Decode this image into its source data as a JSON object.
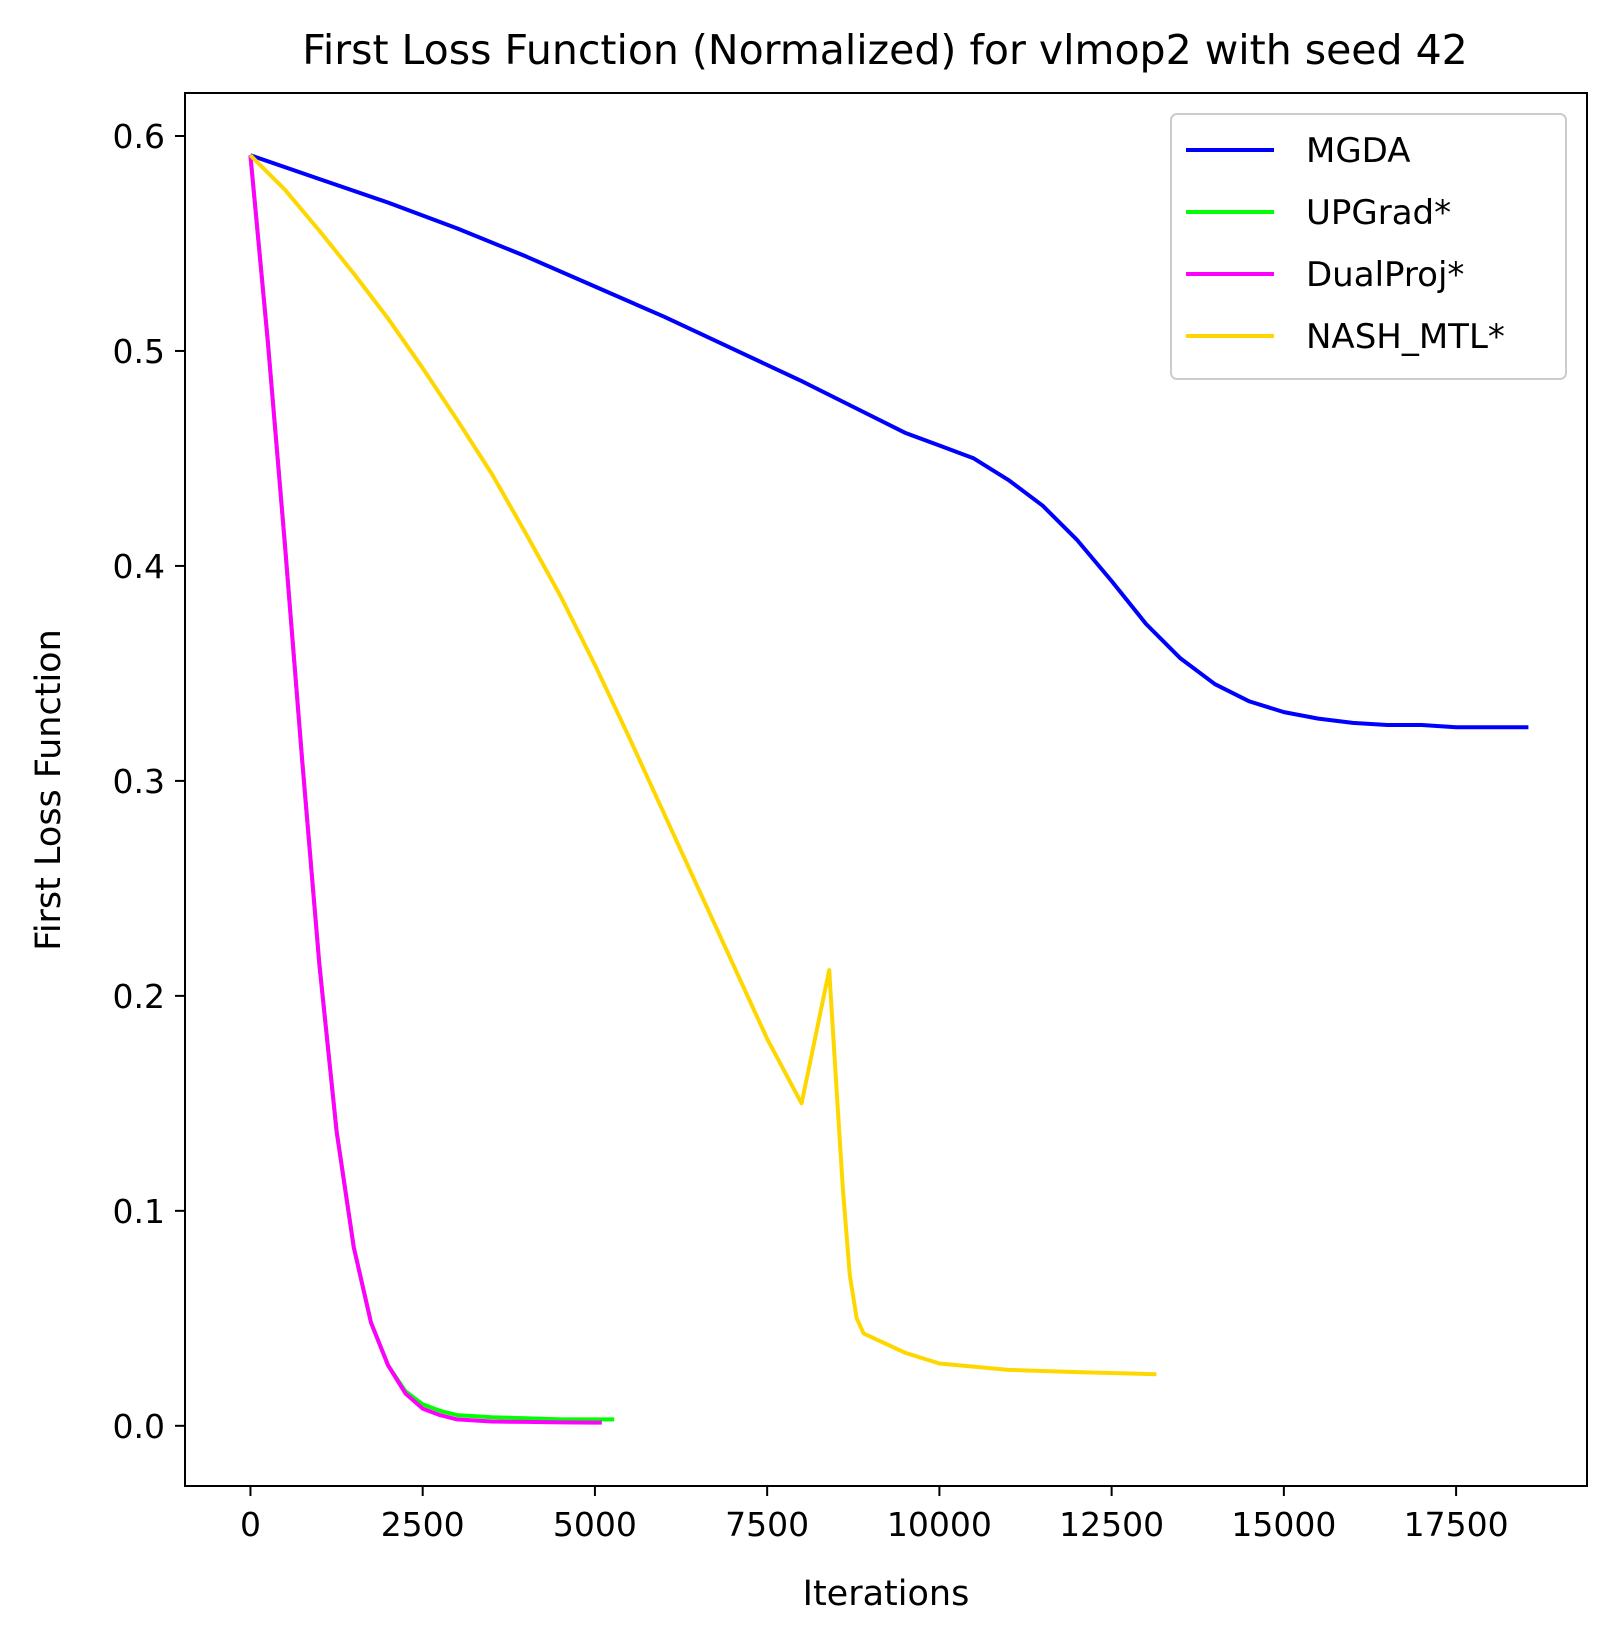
{
  "chart_data": {
    "type": "line",
    "title": "First Loss Function (Normalized) for vlmop2 with seed 42",
    "xlabel": "Iterations",
    "ylabel": "First Loss Function",
    "xlim": [
      -950,
      19400
    ],
    "ylim": [
      -0.028,
      0.62
    ],
    "x_ticks": [
      0,
      2500,
      5000,
      7500,
      10000,
      12500,
      15000,
      17500
    ],
    "x_tick_labels": [
      "0",
      "2500",
      "5000",
      "7500",
      "10000",
      "12500",
      "15000",
      "17500"
    ],
    "y_ticks": [
      0.0,
      0.1,
      0.2,
      0.3,
      0.4,
      0.5,
      0.6
    ],
    "y_tick_labels": [
      "0.0",
      "0.1",
      "0.2",
      "0.3",
      "0.4",
      "0.5",
      "0.6"
    ],
    "grid": false,
    "legend_position": "top-right",
    "series": [
      {
        "name": "MGDA",
        "color": "#0000ff",
        "x": [
          0,
          1000,
          2000,
          3000,
          4000,
          5000,
          6000,
          7000,
          8000,
          9000,
          9500,
          10000,
          10500,
          11000,
          11500,
          12000,
          12500,
          13000,
          13500,
          14000,
          14500,
          15000,
          15500,
          16000,
          16500,
          17000,
          17500,
          18000,
          18550
        ],
        "y": [
          0.591,
          0.58,
          0.569,
          0.557,
          0.544,
          0.53,
          0.516,
          0.501,
          0.486,
          0.47,
          0.462,
          0.456,
          0.45,
          0.44,
          0.428,
          0.412,
          0.393,
          0.373,
          0.357,
          0.345,
          0.337,
          0.332,
          0.329,
          0.327,
          0.326,
          0.326,
          0.325,
          0.325,
          0.325
        ]
      },
      {
        "name": "UPGrad*",
        "color": "#00ff00",
        "x": [
          0,
          250,
          500,
          750,
          1000,
          1250,
          1500,
          1750,
          2000,
          2250,
          2500,
          2750,
          3000,
          3500,
          4000,
          4500,
          5000,
          5280
        ],
        "y": [
          0.591,
          0.505,
          0.41,
          0.31,
          0.215,
          0.137,
          0.083,
          0.048,
          0.028,
          0.016,
          0.01,
          0.007,
          0.005,
          0.004,
          0.0035,
          0.003,
          0.003,
          0.003
        ]
      },
      {
        "name": "DualProj*",
        "color": "#ff00ff",
        "x": [
          0,
          250,
          500,
          750,
          1000,
          1250,
          1500,
          1750,
          2000,
          2250,
          2500,
          2750,
          3000,
          3500,
          4000,
          4500,
          5000,
          5100
        ],
        "y": [
          0.591,
          0.505,
          0.41,
          0.31,
          0.215,
          0.137,
          0.083,
          0.048,
          0.028,
          0.015,
          0.008,
          0.005,
          0.003,
          0.002,
          0.0018,
          0.0016,
          0.0015,
          0.0015
        ]
      },
      {
        "name": "NASH_MTL*",
        "color": "#ffd700",
        "x": [
          0,
          500,
          1000,
          1500,
          2000,
          2500,
          3000,
          3500,
          4000,
          4500,
          5000,
          5500,
          6000,
          6500,
          7000,
          7500,
          8000,
          8400,
          8500,
          8600,
          8700,
          8800,
          8900,
          9500,
          10000,
          11000,
          12000,
          13150
        ],
        "y": [
          0.591,
          0.575,
          0.556,
          0.536,
          0.515,
          0.492,
          0.468,
          0.443,
          0.415,
          0.386,
          0.354,
          0.32,
          0.285,
          0.25,
          0.215,
          0.18,
          0.15,
          0.212,
          0.16,
          0.11,
          0.07,
          0.05,
          0.043,
          0.034,
          0.029,
          0.026,
          0.025,
          0.024
        ]
      }
    ]
  }
}
